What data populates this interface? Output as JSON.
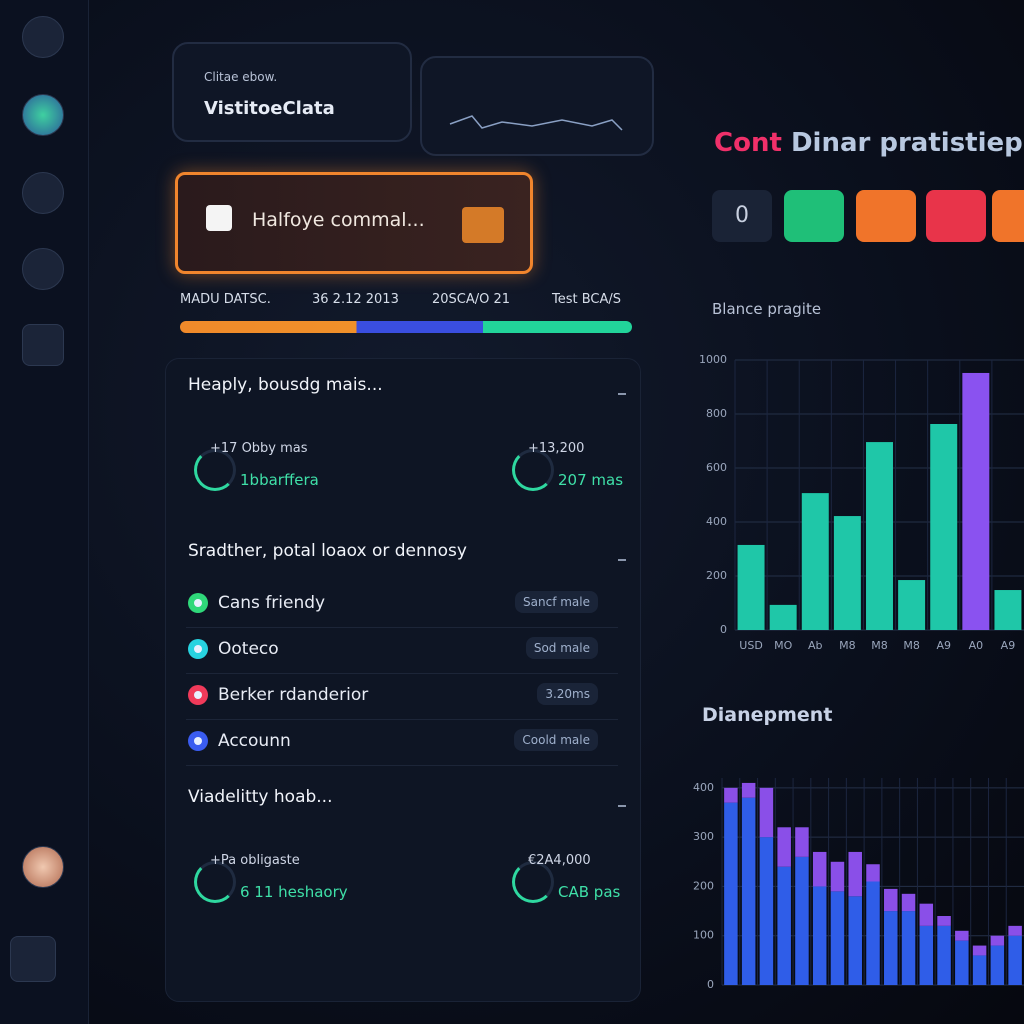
{
  "header": {
    "caption": "Clitae ebow.",
    "title": "VistitoeClata"
  },
  "alert": {
    "text": "Halfoye commal..."
  },
  "progress": {
    "labels": [
      "MADU DATSC.",
      "36 2.12 2013",
      "20SCA/O 21",
      "Test BCA/S"
    ]
  },
  "panel": {
    "sections": [
      {
        "title": "Heaply, bousdg mais...",
        "stats": [
          {
            "label": "+17 Obby mas",
            "value": "1bbarffera"
          },
          {
            "label": "+13,200",
            "value": "207 mas"
          }
        ]
      },
      {
        "title": "Sradther, potal loaox or dennosy",
        "items": [
          {
            "name": "Cans friendy",
            "badge": "Sancf male",
            "color": "#2fd87a"
          },
          {
            "name": "Ooteco",
            "badge": "Sod male",
            "color": "#27d3e0"
          },
          {
            "name": "Berker rdanderior",
            "badge": "3.20ms",
            "color": "#f03a5a"
          },
          {
            "name": "Accounn",
            "badge": "Coold male",
            "color": "#3a5cf0"
          }
        ]
      },
      {
        "title": "Viadelitty hoab...",
        "stats": [
          {
            "label": "+Pa obligaste",
            "value": "6 11 heshaory"
          },
          {
            "label": "€2A4,000",
            "value": "CAB pas"
          }
        ]
      }
    ]
  },
  "right": {
    "title_accent": "Cont",
    "title": "Dinar pratistiep",
    "button": "0",
    "chart1_title": "Blance pragite",
    "chart2_title": "Dianepment"
  },
  "chart_data": [
    {
      "type": "bar",
      "categories": [
        "USD",
        "MO",
        "Ab",
        "M8",
        "M8",
        "M8",
        "A9",
        "A0",
        "A9"
      ],
      "values": [
        315,
        93,
        507,
        422,
        696,
        185,
        763,
        952,
        148
      ],
      "colors": [
        "#1fc7a8",
        "#1fc7a8",
        "#1fc7a8",
        "#1fc7a8",
        "#1fc7a8",
        "#1fc7a8",
        "#1fc7a8",
        "#8a52f0",
        "#1fc7a8"
      ],
      "ylim": [
        0,
        1000
      ],
      "yticks": [
        0,
        200,
        400,
        600,
        800,
        1000
      ],
      "grid": true
    },
    {
      "type": "stacked_bar",
      "categories": [
        null,
        null,
        null,
        null,
        null,
        null,
        null,
        null,
        null,
        null,
        null,
        null,
        null,
        null,
        null,
        null,
        null
      ],
      "series": [
        {
          "color": "#2f5de8",
          "values": [
            370,
            380,
            300,
            240,
            260,
            200,
            190,
            180,
            210,
            150,
            150,
            120,
            120,
            90,
            60,
            80,
            100
          ]
        },
        {
          "color": "#8a4fe8",
          "values": [
            30,
            30,
            100,
            80,
            60,
            70,
            60,
            90,
            35,
            45,
            35,
            45,
            20,
            20,
            20,
            20,
            20
          ]
        }
      ],
      "ylim": [
        0,
        420
      ],
      "yticks": [
        0,
        100,
        200,
        300,
        400
      ],
      "grid": true
    }
  ]
}
